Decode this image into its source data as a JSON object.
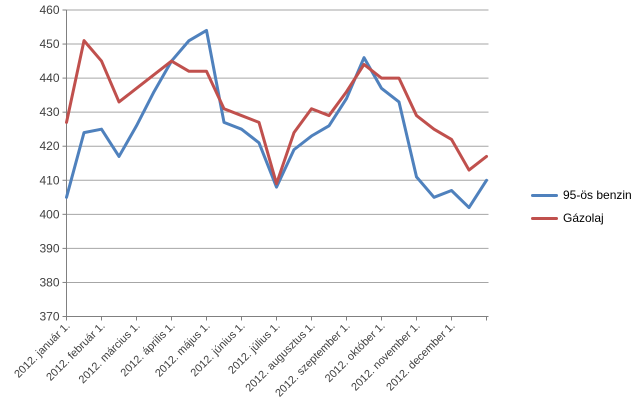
{
  "chart_data": {
    "type": "line",
    "title": "",
    "xlabel": "",
    "ylabel": "",
    "categories": [
      "2012. január 1.",
      "2012. február 1.",
      "2012. március 1.",
      "2012. április 1.",
      "2012. május 1.",
      "2012. június 1.",
      "2012. július 1.",
      "2012. augusztus 1.",
      "2012. szeptember 1.",
      "2012. október 1.",
      "2012. november 1.",
      "2012. december 1."
    ],
    "points_per_month": 2,
    "x_resolution": "semi-monthly points from 2012. január 1. through the end of the year",
    "series": [
      {
        "name": "95-ös benzin",
        "color": "#4F81BD",
        "values": [
          405,
          424,
          425,
          417,
          426,
          436,
          445,
          451,
          454,
          427,
          425,
          421,
          408,
          419,
          423,
          426,
          434,
          446,
          437,
          433,
          411,
          405,
          407,
          402,
          410
        ]
      },
      {
        "name": "Gázolaj",
        "color": "#C0504D",
        "values": [
          427,
          451,
          445,
          433,
          437,
          441,
          445,
          442,
          442,
          431,
          429,
          427,
          409,
          424,
          431,
          429,
          436,
          444,
          440,
          440,
          429,
          425,
          422,
          413,
          417
        ]
      }
    ],
    "y_axis": {
      "min": 370,
      "max": 460,
      "step": 10
    },
    "legend_position": "right",
    "grid": "horizontal",
    "grid_color": "#A6A6A6",
    "axis_color": "#808080"
  }
}
